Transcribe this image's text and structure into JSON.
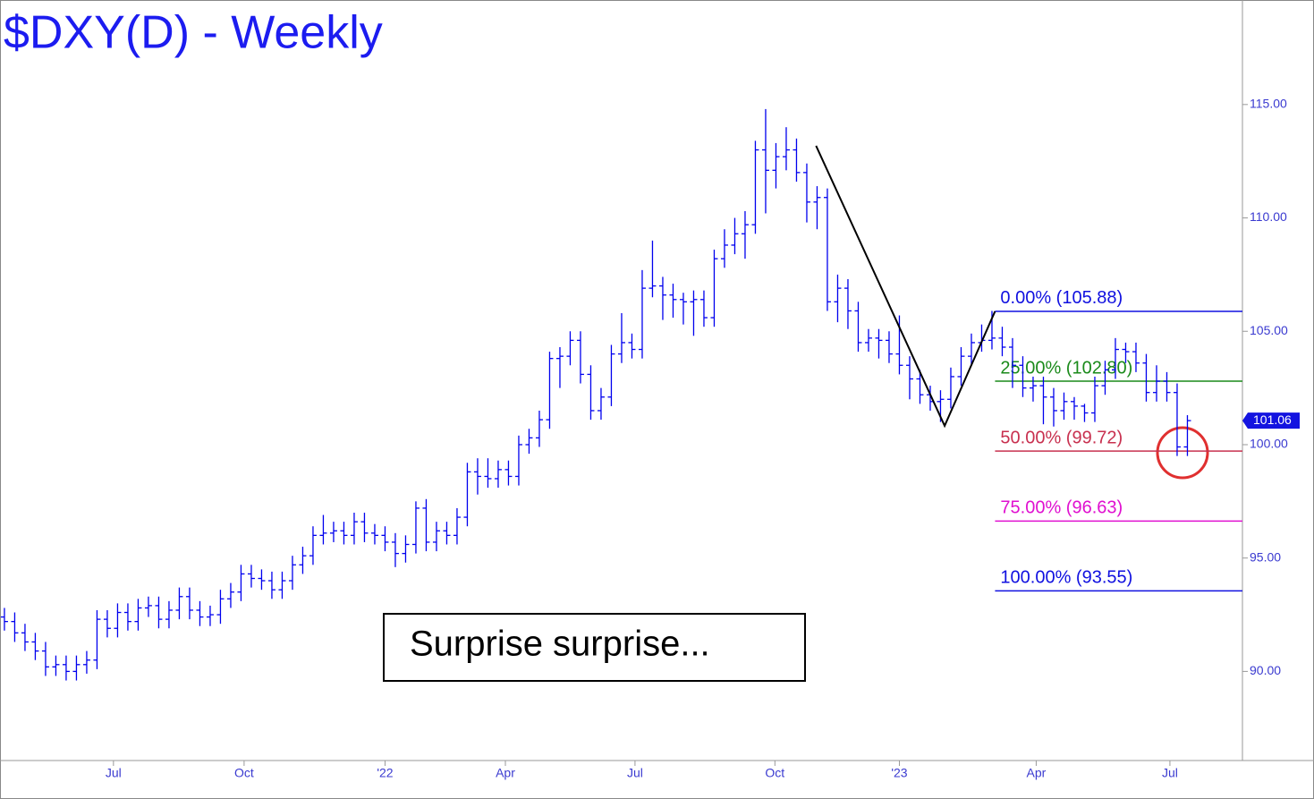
{
  "chart_data": {
    "type": "ohlc",
    "title": "$DXY(D) - Weekly",
    "color": "#0000ee",
    "x": [
      0,
      1,
      2,
      3,
      4,
      5,
      6,
      7,
      8,
      9,
      10,
      11,
      12,
      13,
      14,
      15,
      16,
      17,
      18,
      19,
      20,
      21,
      22,
      23,
      24,
      25,
      26,
      27,
      28,
      29,
      30,
      31,
      32,
      33,
      34,
      35,
      36,
      37,
      38,
      39,
      40,
      41,
      42,
      43,
      44,
      45,
      46,
      47,
      48,
      49,
      50,
      51,
      52,
      53,
      54,
      55,
      56,
      57,
      58,
      59,
      60,
      61,
      62,
      63,
      64,
      65,
      66,
      67,
      68,
      69,
      70,
      71,
      72,
      73,
      74,
      75,
      76,
      77,
      78,
      79,
      80,
      81,
      82,
      83,
      84,
      85,
      86,
      87,
      88,
      89,
      90,
      91,
      92,
      93,
      94,
      95,
      96,
      97,
      98,
      99,
      100,
      101,
      102,
      103,
      104,
      105,
      106,
      107,
      108,
      109,
      110,
      111,
      112,
      113,
      114,
      115
    ],
    "open": [
      92.4,
      92.2,
      91.7,
      91.3,
      90.9,
      90.2,
      90.3,
      90.0,
      90.3,
      90.5,
      92.3,
      91.9,
      92.6,
      92.2,
      92.8,
      92.9,
      92.3,
      92.7,
      93.3,
      92.7,
      92.4,
      92.5,
      93.2,
      93.5,
      94.3,
      94.1,
      94.0,
      93.6,
      94.0,
      94.7,
      95.1,
      96.0,
      96.1,
      96.2,
      96.0,
      96.6,
      96.1,
      96.0,
      95.7,
      95.2,
      95.6,
      97.2,
      95.7,
      96.2,
      96.0,
      96.8,
      98.8,
      98.6,
      98.5,
      98.9,
      98.6,
      100.0,
      100.3,
      101.1,
      103.8,
      103.9,
      104.6,
      103.1,
      101.5,
      102.1,
      104.0,
      104.5,
      104.2,
      106.9,
      107.0,
      106.6,
      106.4,
      106.3,
      106.4,
      105.6,
      108.2,
      108.8,
      109.3,
      109.7,
      113.0,
      112.1,
      112.7,
      113.0,
      112.0,
      110.7,
      110.9,
      106.3,
      106.9,
      105.9,
      104.5,
      104.7,
      104.6,
      104.0,
      103.5,
      102.9,
      102.2,
      101.9,
      102.0,
      103.0,
      103.9,
      104.5,
      104.6,
      104.7,
      104.3,
      103.5,
      102.5,
      102.6,
      102.1,
      101.5,
      101.9,
      101.7,
      101.4,
      102.6,
      103.3,
      104.2,
      104.1,
      103.6,
      102.3,
      102.8,
      102.3,
      99.9
    ],
    "high": [
      92.8,
      92.6,
      92.1,
      91.7,
      91.3,
      90.7,
      90.7,
      90.7,
      90.9,
      92.7,
      92.7,
      93.0,
      93.0,
      93.2,
      93.3,
      93.3,
      93.1,
      93.7,
      93.7,
      93.1,
      92.9,
      93.6,
      93.9,
      94.7,
      94.7,
      94.5,
      94.4,
      94.4,
      95.1,
      95.5,
      96.4,
      96.9,
      96.6,
      96.6,
      97.0,
      97.0,
      96.5,
      96.4,
      96.1,
      96.0,
      97.5,
      97.6,
      96.6,
      96.6,
      97.2,
      99.2,
      99.4,
      99.4,
      99.3,
      99.3,
      100.4,
      100.7,
      101.5,
      104.1,
      104.3,
      105.0,
      105.0,
      103.5,
      102.5,
      104.4,
      105.8,
      104.9,
      107.7,
      109.0,
      107.4,
      107.1,
      106.7,
      106.8,
      106.8,
      108.6,
      109.5,
      110.0,
      110.3,
      113.4,
      114.8,
      113.3,
      114.0,
      113.5,
      112.4,
      111.4,
      111.3,
      107.5,
      107.3,
      106.3,
      105.1,
      105.1,
      105.0,
      105.7,
      103.9,
      103.3,
      102.6,
      102.4,
      103.4,
      104.3,
      104.9,
      105.3,
      105.9,
      105.2,
      104.7,
      103.9,
      103.0,
      103.0,
      102.5,
      102.3,
      102.1,
      101.8,
      103.0,
      103.7,
      104.7,
      104.5,
      104.5,
      104.0,
      103.5,
      103.2,
      102.7,
      101.3
    ],
    "low": [
      91.8,
      91.3,
      90.9,
      90.5,
      89.8,
      89.8,
      89.6,
      89.6,
      89.9,
      90.1,
      91.5,
      91.5,
      91.8,
      91.8,
      92.4,
      91.9,
      91.9,
      92.3,
      92.3,
      92.0,
      92.0,
      92.1,
      92.8,
      93.1,
      93.7,
      93.6,
      93.2,
      93.2,
      93.6,
      94.3,
      94.7,
      95.6,
      95.7,
      95.6,
      95.6,
      95.7,
      95.6,
      95.3,
      94.6,
      94.8,
      95.2,
      95.3,
      95.3,
      95.6,
      95.6,
      96.4,
      97.8,
      98.1,
      98.1,
      98.2,
      98.2,
      99.6,
      99.9,
      100.7,
      102.5,
      103.5,
      102.7,
      101.1,
      101.1,
      101.7,
      103.6,
      103.8,
      103.8,
      106.5,
      105.5,
      105.6,
      105.3,
      104.8,
      105.2,
      105.2,
      107.8,
      108.4,
      108.2,
      109.3,
      110.2,
      111.3,
      112.1,
      111.6,
      109.8,
      109.5,
      105.9,
      105.4,
      105.1,
      104.1,
      104.1,
      103.8,
      103.6,
      103.1,
      102.0,
      101.8,
      101.5,
      101.0,
      101.6,
      102.6,
      103.5,
      104.1,
      104.2,
      103.9,
      102.5,
      102.1,
      101.9,
      100.9,
      100.8,
      101.1,
      101.1,
      101.0,
      101.0,
      102.2,
      102.9,
      103.6,
      103.2,
      101.9,
      101.9,
      101.9,
      99.5,
      99.5
    ],
    "close": [
      92.2,
      91.7,
      91.3,
      90.9,
      90.2,
      90.3,
      90.0,
      90.3,
      90.5,
      92.3,
      91.9,
      92.6,
      92.2,
      92.8,
      92.9,
      92.3,
      92.7,
      93.3,
      92.7,
      92.4,
      92.5,
      93.2,
      93.5,
      94.3,
      94.1,
      94.0,
      93.6,
      94.0,
      94.7,
      95.1,
      96.0,
      96.1,
      96.2,
      96.0,
      96.6,
      96.1,
      96.0,
      95.7,
      95.2,
      95.6,
      97.2,
      95.7,
      96.2,
      96.0,
      96.8,
      98.8,
      98.6,
      98.5,
      98.9,
      98.6,
      100.0,
      100.3,
      101.1,
      103.8,
      103.9,
      104.6,
      103.1,
      101.5,
      102.1,
      104.0,
      104.5,
      104.2,
      106.9,
      107.0,
      106.6,
      106.4,
      106.3,
      106.4,
      105.6,
      108.2,
      108.8,
      109.3,
      109.7,
      113.0,
      112.1,
      112.7,
      113.0,
      112.0,
      110.7,
      110.9,
      106.3,
      106.9,
      105.9,
      104.5,
      104.7,
      104.6,
      104.0,
      103.5,
      102.9,
      102.2,
      101.9,
      102.0,
      103.0,
      103.9,
      104.5,
      104.6,
      104.7,
      104.3,
      103.5,
      102.5,
      102.6,
      102.1,
      101.5,
      101.9,
      101.7,
      101.4,
      102.6,
      103.3,
      104.2,
      104.1,
      103.6,
      102.3,
      102.8,
      102.3,
      99.9,
      101.06
    ],
    "xlim": [
      -0.43,
      120.35
    ],
    "xticks": [
      {
        "value": 10.6,
        "label": "Jul"
      },
      {
        "value": 23.3,
        "label": "Oct"
      },
      {
        "value": 37,
        "label": "'22"
      },
      {
        "value": 48.7,
        "label": "Apr"
      },
      {
        "value": 61.3,
        "label": "Jul"
      },
      {
        "value": 74.9,
        "label": "Oct"
      },
      {
        "value": 87,
        "label": "'23"
      },
      {
        "value": 100.3,
        "label": "Apr"
      },
      {
        "value": 113.3,
        "label": "Jul"
      }
    ],
    "ylim": [
      86.07,
      119.61
    ],
    "yticks": [
      {
        "value": 90,
        "label": "90.00"
      },
      {
        "value": 95,
        "label": "95.00"
      },
      {
        "value": 100,
        "label": "100.00"
      },
      {
        "value": 105,
        "label": "105.00"
      },
      {
        "value": 110,
        "label": "110.00"
      },
      {
        "value": 115,
        "label": "115.00"
      }
    ],
    "last_price": {
      "value": 101.06,
      "label": "101.06"
    },
    "pattern_line": {
      "x": [
        78.9,
        91.4,
        96.3
      ],
      "y": [
        113.18,
        100.83,
        105.88
      ]
    },
    "fib_levels": [
      {
        "label": "0.00% (105.88)",
        "value": 105.88,
        "color": "#1010e0"
      },
      {
        "label": "25.00% (102.80)",
        "value": 102.8,
        "color": "#1a8a1a"
      },
      {
        "label": "50.00% (99.72)",
        "value": 99.72,
        "color": "#c8304f"
      },
      {
        "label": "75.00% (96.63)",
        "value": 96.63,
        "color": "#e010d0"
      },
      {
        "label": "100.00% (93.55)",
        "value": 93.55,
        "color": "#1010e0"
      }
    ],
    "annotation": "Surprise surprise..."
  }
}
